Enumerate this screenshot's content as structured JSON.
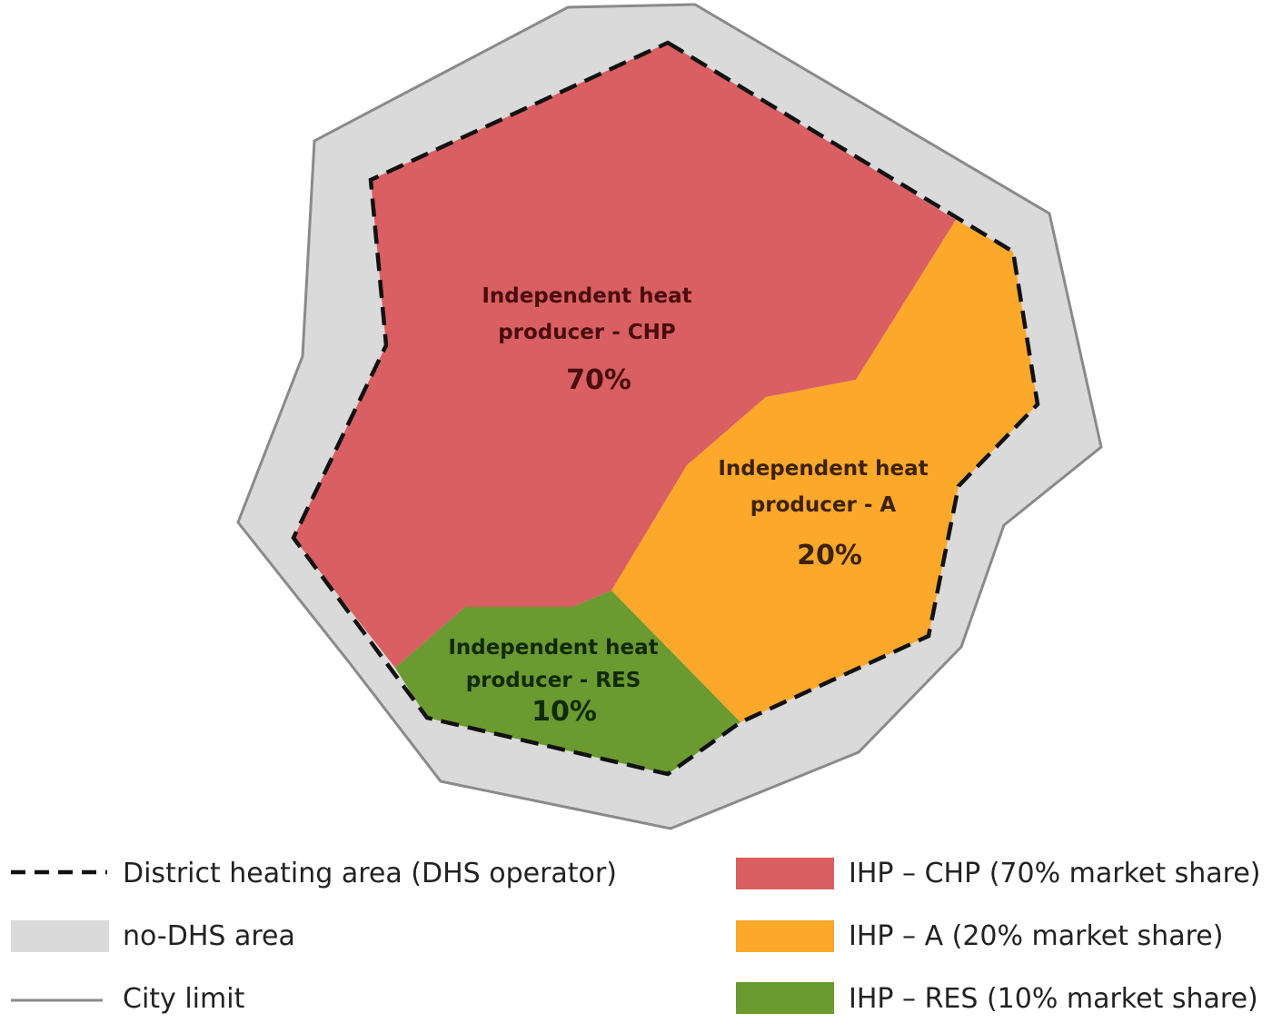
{
  "colors": {
    "chp": "#d95f62",
    "a": "#fca82a",
    "res": "#6a9a30",
    "no_dhs": "#dadada",
    "city_limit": "#8a8a8a",
    "dhs_border": "#111111",
    "chp_text": "#4a0c0c",
    "a_text": "#3d2200",
    "res_text": "#102a06"
  },
  "zones": {
    "chp": {
      "line1": "Independent heat",
      "line2": "producer - CHP",
      "share": "70%"
    },
    "a": {
      "line1": "Independent heat",
      "line2": "producer - A",
      "share": "20%"
    },
    "res": {
      "line1": "Independent heat",
      "line2": "producer - RES",
      "share": "10%"
    }
  },
  "legend": {
    "dhs_area": "District heating area (DHS operator)",
    "no_dhs": "no-DHS area",
    "city_limit": "City limit",
    "chp": "IHP – CHP (70% market share)",
    "a": "IHP – A (20% market share)",
    "res": "IHP – RES (10% market share)"
  }
}
